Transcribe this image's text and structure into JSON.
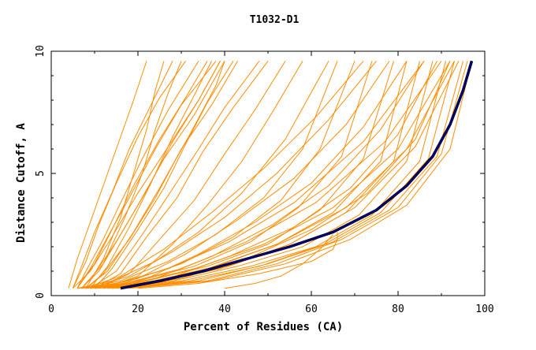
{
  "chart_data": {
    "type": "line",
    "title": "T1032-D1",
    "xlabel": "Percent of Residues (CA)",
    "ylabel": "Distance Cutoff, A",
    "xlim": [
      0,
      100
    ],
    "ylim": [
      0,
      10
    ],
    "xticks": [
      0,
      20,
      40,
      60,
      80,
      100
    ],
    "yticks": [
      0,
      5,
      10
    ],
    "grid": false,
    "colors": {
      "models": "#ff8c00",
      "highlight": "#00008b",
      "highlight_outline": "#000000"
    },
    "series": [
      {
        "group": "models",
        "x": [
          4,
          6,
          9,
          12,
          16,
          19,
          22
        ],
        "y": [
          0.3,
          1.5,
          3.0,
          4.5,
          6.5,
          8.0,
          9.6
        ]
      },
      {
        "group": "models",
        "x": [
          5,
          7,
          10,
          14,
          18,
          23,
          28
        ],
        "y": [
          0.3,
          1.2,
          2.6,
          4.2,
          6.0,
          7.8,
          9.6
        ]
      },
      {
        "group": "models",
        "x": [
          6,
          8,
          12,
          16,
          21,
          27,
          34
        ],
        "y": [
          0.3,
          1.0,
          2.3,
          3.8,
          5.6,
          7.6,
          9.6
        ]
      },
      {
        "group": "models",
        "x": [
          6,
          9,
          13,
          18,
          24,
          30,
          38
        ],
        "y": [
          0.3,
          1.1,
          2.4,
          4.0,
          6.0,
          7.8,
          9.6
        ]
      },
      {
        "group": "models",
        "x": [
          7,
          10,
          15,
          20,
          26,
          33,
          40
        ],
        "y": [
          0.3,
          0.9,
          2.2,
          3.7,
          5.6,
          7.4,
          9.6
        ]
      },
      {
        "group": "models",
        "x": [
          7,
          11,
          16,
          22,
          28,
          34,
          39
        ],
        "y": [
          0.3,
          1.0,
          2.5,
          4.3,
          6.3,
          8.0,
          9.6
        ]
      },
      {
        "group": "models",
        "x": [
          8,
          12,
          18,
          24,
          30,
          37,
          43
        ],
        "y": [
          0.3,
          0.9,
          2.3,
          4.0,
          6.0,
          7.8,
          9.6
        ]
      },
      {
        "group": "models",
        "x": [
          8,
          13,
          19,
          25,
          32,
          38,
          40
        ],
        "y": [
          0.3,
          1.0,
          2.6,
          4.4,
          6.6,
          8.6,
          9.6
        ]
      },
      {
        "group": "models",
        "x": [
          9,
          13,
          18,
          23,
          28,
          33,
          37
        ],
        "y": [
          0.3,
          1.2,
          2.8,
          4.6,
          6.5,
          8.2,
          9.6
        ]
      },
      {
        "group": "models",
        "x": [
          10,
          14,
          20,
          26,
          31,
          36,
          42
        ],
        "y": [
          0.3,
          1.1,
          2.7,
          4.4,
          6.2,
          7.9,
          9.6
        ]
      },
      {
        "group": "models",
        "x": [
          5,
          8,
          11,
          15,
          20,
          25,
          31
        ],
        "y": [
          0.3,
          1.4,
          2.9,
          4.6,
          6.5,
          8.1,
          9.6
        ]
      },
      {
        "group": "models",
        "x": [
          6,
          10,
          14,
          19,
          25,
          31,
          36
        ],
        "y": [
          0.3,
          1.3,
          2.7,
          4.5,
          6.4,
          8.1,
          9.6
        ]
      },
      {
        "group": "models",
        "x": [
          9,
          15,
          21,
          27,
          34,
          40,
          48
        ],
        "y": [
          0.3,
          1.0,
          2.5,
          4.1,
          6.0,
          7.7,
          9.6
        ]
      },
      {
        "group": "models",
        "x": [
          7,
          12,
          17,
          21,
          24,
          27,
          30
        ],
        "y": [
          0.3,
          1.3,
          3.2,
          5.0,
          6.8,
          8.3,
          9.6
        ]
      },
      {
        "group": "models",
        "x": [
          8,
          12,
          16,
          19,
          22,
          24,
          26
        ],
        "y": [
          0.3,
          1.5,
          3.2,
          5.0,
          6.8,
          8.4,
          9.6
        ]
      },
      {
        "group": "models",
        "x": [
          10,
          16,
          22,
          29,
          35,
          42,
          50
        ],
        "y": [
          0.3,
          0.9,
          2.4,
          4.0,
          5.9,
          7.7,
          9.6
        ]
      },
      {
        "group": "models",
        "x": [
          5,
          9,
          14,
          20,
          27,
          34,
          39
        ],
        "y": [
          0.3,
          1.0,
          2.4,
          4.2,
          6.1,
          8.0,
          9.6
        ]
      },
      {
        "group": "models",
        "x": [
          11,
          18,
          25,
          33,
          40,
          47,
          54
        ],
        "y": [
          0.3,
          0.9,
          2.3,
          3.9,
          5.8,
          7.6,
          9.6
        ]
      },
      {
        "group": "models",
        "x": [
          12,
          20,
          28,
          36,
          44,
          51,
          58
        ],
        "y": [
          0.3,
          0.8,
          2.1,
          3.7,
          5.5,
          7.5,
          9.6
        ]
      },
      {
        "group": "models",
        "x": [
          6,
          14,
          24,
          34,
          44,
          54,
          64
        ],
        "y": [
          0.3,
          0.6,
          1.4,
          2.6,
          4.2,
          6.4,
          9.6
        ]
      },
      {
        "group": "models",
        "x": [
          7,
          16,
          27,
          38,
          49,
          58,
          66
        ],
        "y": [
          0.3,
          0.6,
          1.4,
          2.5,
          4.0,
          6.0,
          9.6
        ]
      },
      {
        "group": "models",
        "x": [
          8,
          18,
          30,
          42,
          53,
          62,
          70
        ],
        "y": [
          0.3,
          0.6,
          1.3,
          2.4,
          3.9,
          6.0,
          9.6
        ]
      },
      {
        "group": "models",
        "x": [
          9,
          20,
          33,
          46,
          57,
          67,
          74
        ],
        "y": [
          0.3,
          0.6,
          1.2,
          2.2,
          3.6,
          5.7,
          9.6
        ]
      },
      {
        "group": "models",
        "x": [
          10,
          22,
          36,
          50,
          62,
          72,
          79
        ],
        "y": [
          0.3,
          0.6,
          1.2,
          2.1,
          3.5,
          5.6,
          9.6
        ]
      },
      {
        "group": "models",
        "x": [
          11,
          24,
          38,
          52,
          65,
          76,
          82
        ],
        "y": [
          0.3,
          0.6,
          1.2,
          2.1,
          3.4,
          5.5,
          9.6
        ]
      },
      {
        "group": "models",
        "x": [
          12,
          26,
          41,
          55,
          68,
          79,
          85
        ],
        "y": [
          0.3,
          0.6,
          1.2,
          2.1,
          3.4,
          5.5,
          9.6
        ]
      },
      {
        "group": "models",
        "x": [
          13,
          28,
          43,
          58,
          71,
          82,
          88
        ],
        "y": [
          0.3,
          0.6,
          1.2,
          2.0,
          3.3,
          5.5,
          9.6
        ]
      },
      {
        "group": "models",
        "x": [
          14,
          30,
          46,
          61,
          74,
          85,
          91
        ],
        "y": [
          0.3,
          0.6,
          1.2,
          2.0,
          3.3,
          5.5,
          9.6
        ]
      },
      {
        "group": "models",
        "x": [
          15,
          32,
          48,
          63,
          76,
          87,
          93
        ],
        "y": [
          0.3,
          0.6,
          1.2,
          2.1,
          3.4,
          5.6,
          9.6
        ]
      },
      {
        "group": "models",
        "x": [
          16,
          34,
          50,
          65,
          78,
          89,
          95
        ],
        "y": [
          0.3,
          0.6,
          1.3,
          2.2,
          3.5,
          5.7,
          9.6
        ]
      },
      {
        "group": "models",
        "x": [
          17,
          36,
          52,
          67,
          80,
          90,
          96
        ],
        "y": [
          0.3,
          0.6,
          1.3,
          2.3,
          3.6,
          5.8,
          9.6
        ]
      },
      {
        "group": "models",
        "x": [
          18,
          37,
          54,
          69,
          82,
          92,
          97
        ],
        "y": [
          0.3,
          0.6,
          1.3,
          2.3,
          3.7,
          6.0,
          9.6
        ]
      },
      {
        "group": "models",
        "x": [
          6,
          15,
          27,
          41,
          56,
          72,
          86
        ],
        "y": [
          0.3,
          0.5,
          1.1,
          2.2,
          3.8,
          6.3,
          9.6
        ]
      },
      {
        "group": "models",
        "x": [
          7,
          17,
          30,
          45,
          61,
          77,
          90
        ],
        "y": [
          0.3,
          0.5,
          1.1,
          2.2,
          3.8,
          6.3,
          9.6
        ]
      },
      {
        "group": "models",
        "x": [
          8,
          19,
          33,
          49,
          65,
          80,
          92
        ],
        "y": [
          0.3,
          0.5,
          1.1,
          2.1,
          3.6,
          6.0,
          9.6
        ]
      },
      {
        "group": "models",
        "x": [
          9,
          21,
          36,
          52,
          68,
          82,
          93
        ],
        "y": [
          0.3,
          0.5,
          1.1,
          2.1,
          3.6,
          6.0,
          9.6
        ]
      },
      {
        "group": "models",
        "x": [
          10,
          23,
          39,
          55,
          70,
          84,
          94
        ],
        "y": [
          0.3,
          0.5,
          1.1,
          2.1,
          3.6,
          6.1,
          9.6
        ]
      },
      {
        "group": "models",
        "x": [
          20,
          34,
          48,
          60,
          65,
          66,
          66
        ],
        "y": [
          0.3,
          0.5,
          0.9,
          1.4,
          1.9,
          2.3,
          2.6
        ]
      },
      {
        "group": "models",
        "x": [
          40,
          47,
          53,
          58,
          62,
          65
        ],
        "y": [
          0.3,
          0.5,
          0.8,
          1.3,
          1.9,
          2.5
        ]
      },
      {
        "group": "models",
        "x": [
          14,
          30,
          45,
          60,
          73,
          84,
          92
        ],
        "y": [
          0.3,
          0.7,
          1.5,
          2.7,
          4.2,
          6.4,
          9.6
        ]
      },
      {
        "group": "models",
        "x": [
          13,
          27,
          41,
          56,
          69,
          80,
          89
        ],
        "y": [
          0.3,
          0.7,
          1.6,
          2.8,
          4.4,
          6.6,
          9.6
        ]
      },
      {
        "group": "models",
        "x": [
          12,
          24,
          37,
          51,
          64,
          76,
          86
        ],
        "y": [
          0.3,
          0.7,
          1.6,
          2.9,
          4.5,
          6.8,
          9.6
        ]
      },
      {
        "group": "models",
        "x": [
          11,
          22,
          34,
          47,
          60,
          72,
          82
        ],
        "y": [
          0.3,
          0.7,
          1.7,
          3.0,
          4.6,
          6.9,
          9.6
        ]
      },
      {
        "group": "models",
        "x": [
          10,
          20,
          31,
          43,
          56,
          68,
          78
        ],
        "y": [
          0.3,
          0.7,
          1.7,
          3.1,
          4.8,
          7.0,
          9.6
        ]
      },
      {
        "group": "models",
        "x": [
          9,
          18,
          28,
          40,
          52,
          64,
          75
        ],
        "y": [
          0.3,
          0.8,
          1.8,
          3.2,
          5.0,
          7.2,
          9.6
        ]
      },
      {
        "group": "models",
        "x": [
          8,
          16,
          26,
          37,
          49,
          61,
          72
        ],
        "y": [
          0.3,
          0.8,
          1.9,
          3.4,
          5.2,
          7.3,
          9.6
        ]
      }
    ],
    "highlight": {
      "x": [
        16,
        25,
        35,
        45,
        55,
        65,
        75,
        82,
        88,
        92,
        95,
        97
      ],
      "y": [
        0.3,
        0.6,
        1.0,
        1.5,
        2.0,
        2.6,
        3.5,
        4.5,
        5.7,
        7.0,
        8.4,
        9.6
      ]
    }
  }
}
